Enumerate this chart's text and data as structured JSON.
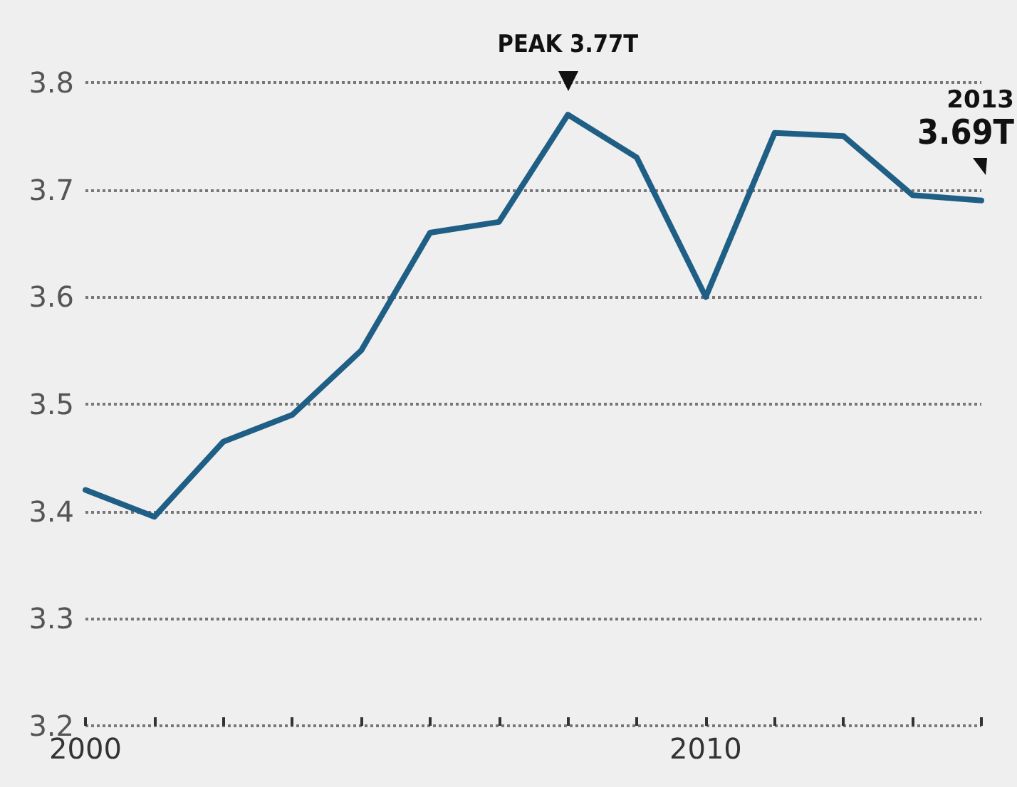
{
  "chart_data": {
    "type": "line",
    "categories": [
      "2000",
      null,
      null,
      null,
      null,
      null,
      null,
      null,
      null,
      "2010",
      null,
      null,
      null,
      null
    ],
    "series": [
      {
        "color": "#1f5f85",
        "values": [
          3.42,
          3.395,
          3.465,
          3.49,
          3.55,
          3.66,
          3.67,
          3.77,
          3.73,
          3.6,
          3.753,
          3.75,
          3.695,
          3.69
        ]
      }
    ],
    "ylim": [
      3.2,
      3.8
    ],
    "yticks": [
      3.2,
      3.3,
      3.4,
      3.5,
      3.6,
      3.7,
      3.8
    ],
    "grid": "y",
    "marker": "none",
    "line_style": "solid",
    "annotations": [
      {
        "text": "PEAK 3.77T",
        "y": 3.77
      },
      "2013",
      {
        "text": "3.69T",
        "y": 3.69
      }
    ]
  }
}
